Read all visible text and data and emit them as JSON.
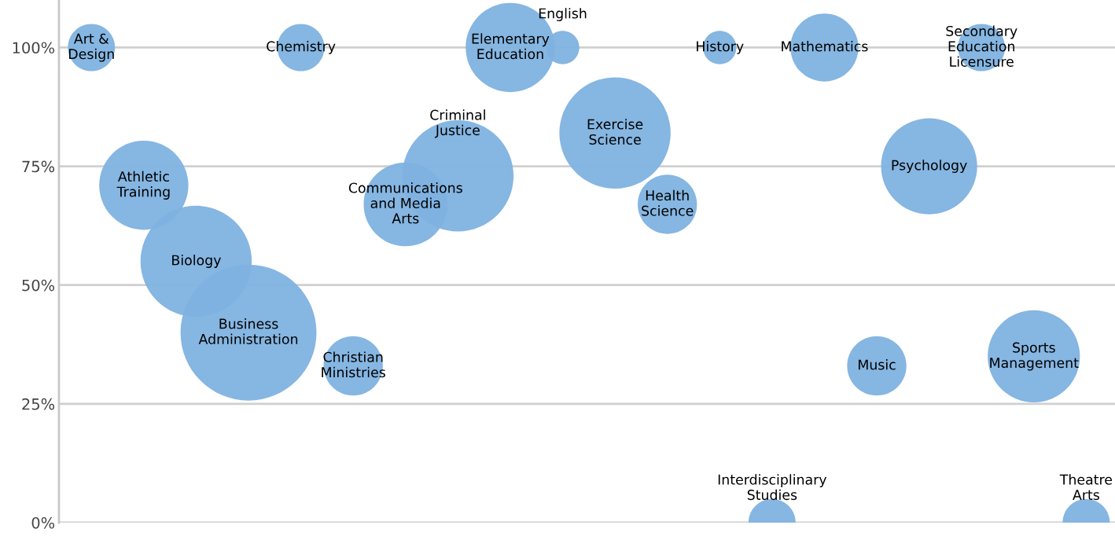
{
  "chart_data": {
    "type": "bubble",
    "categories": [
      "Art & Design",
      "Athletic Training",
      "Biology",
      "Business Administration",
      "Chemistry",
      "Christian Ministries",
      "Communications and Media Arts",
      "Criminal Justice",
      "Elementary Education",
      "English",
      "Exercise Science",
      "Health Science",
      "History",
      "Interdisciplinary Studies",
      "Mathematics",
      "Music",
      "Psychology",
      "Secondary Education Licensure",
      "Sports Management",
      "Theatre Arts"
    ],
    "values": [
      100,
      71,
      55,
      40,
      100,
      33,
      67,
      73,
      100,
      100,
      82,
      67,
      100,
      0,
      100,
      33,
      75,
      100,
      35,
      0
    ],
    "sizes": [
      0.12,
      0.43,
      0.67,
      1,
      0.12,
      0.19,
      0.38,
      0.67,
      0.43,
      0.06,
      0.67,
      0.19,
      0.06,
      0.12,
      0.25,
      0.19,
      0.5,
      0.12,
      0.46,
      0.12
    ],
    "color": "#7fb2e0",
    "ylim": [
      0,
      110
    ],
    "yticks": [
      {
        "value": 0,
        "label": "0%"
      },
      {
        "value": 25,
        "label": "25%"
      },
      {
        "value": 50,
        "label": "50%"
      },
      {
        "value": 75,
        "label": "75%"
      },
      {
        "value": 100,
        "label": "100%"
      }
    ],
    "grid": "y",
    "tick_labels": "y"
  }
}
